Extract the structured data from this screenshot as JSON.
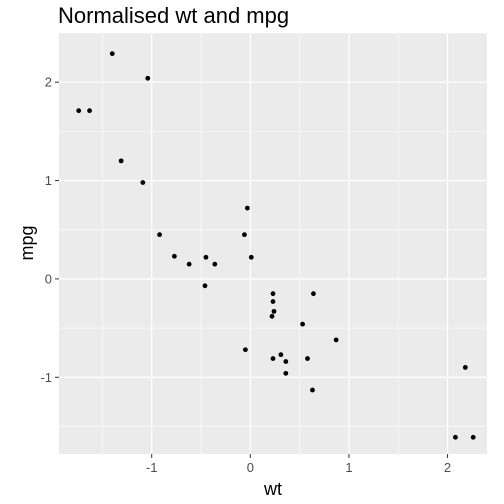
{
  "chart_data": {
    "type": "scatter",
    "title": "Normalised wt and mpg",
    "xlabel": "wt",
    "ylabel": "mpg",
    "xlim": [
      -1.94,
      2.4
    ],
    "ylim": [
      -1.78,
      2.5
    ],
    "xticks": [
      -1,
      0,
      1,
      2
    ],
    "xtick_labels": [
      "-1",
      "0",
      "1",
      "2"
    ],
    "yticks": [
      -1,
      0,
      1,
      2
    ],
    "ytick_labels": [
      "-1",
      "0",
      "1",
      "2"
    ],
    "grid": true,
    "background": "#ebebeb",
    "grid_color": "#ffffff",
    "point_color": "#000000",
    "points": [
      [
        -1.74,
        1.71
      ],
      [
        -1.63,
        1.71
      ],
      [
        -1.4,
        2.29
      ],
      [
        -1.31,
        1.2
      ],
      [
        -1.04,
        2.04
      ],
      [
        -1.09,
        0.98
      ],
      [
        -0.92,
        0.45
      ],
      [
        -0.77,
        0.23
      ],
      [
        -0.62,
        0.15
      ],
      [
        -0.45,
        0.22
      ],
      [
        -0.36,
        0.15
      ],
      [
        -0.46,
        -0.07
      ],
      [
        -0.06,
        0.45
      ],
      [
        -0.03,
        0.72
      ],
      [
        0.01,
        0.22
      ],
      [
        -0.05,
        -0.72
      ],
      [
        0.23,
        -0.15
      ],
      [
        0.23,
        -0.23
      ],
      [
        0.24,
        -0.33
      ],
      [
        0.22,
        -0.38
      ],
      [
        0.64,
        -0.15
      ],
      [
        0.53,
        -0.46
      ],
      [
        0.87,
        -0.62
      ],
      [
        0.31,
        -0.77
      ],
      [
        0.23,
        -0.81
      ],
      [
        0.36,
        -0.84
      ],
      [
        0.58,
        -0.81
      ],
      [
        0.36,
        -0.96
      ],
      [
        0.63,
        -1.13
      ],
      [
        2.18,
        -0.9
      ],
      [
        2.08,
        -1.61
      ],
      [
        2.26,
        -1.61
      ]
    ]
  }
}
